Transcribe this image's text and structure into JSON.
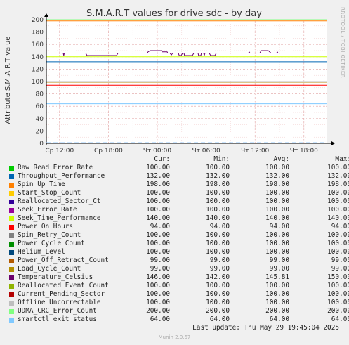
{
  "chart_data": {
    "type": "line",
    "title": "S.M.A.R.T values for drive sdc - by day",
    "ylabel": "Attribute S.M.A.R.T value",
    "ylim": [
      0,
      200
    ],
    "y_ticks": [
      0,
      20,
      40,
      60,
      80,
      100,
      120,
      140,
      160,
      180,
      200
    ],
    "x_ticks": [
      "Ср 12:00",
      "Ср 18:00",
      "Чт 00:00",
      "Чт 06:00",
      "Чт 12:00",
      "Чт 18:00"
    ],
    "grid": true,
    "series": [
      {
        "name": "Raw_Read_Error_Rate",
        "color": "#00cc00",
        "cur": "100.00",
        "min": "100.00",
        "avg": "100.00",
        "max": "100.00",
        "value": 100
      },
      {
        "name": "Throughput_Performance",
        "color": "#0066b3",
        "cur": "132.00",
        "min": "132.00",
        "avg": "132.00",
        "max": "132.00",
        "value": 132
      },
      {
        "name": "Spin_Up_Time",
        "color": "#ff8000",
        "cur": "198.00",
        "min": "198.00",
        "avg": "198.00",
        "max": "198.00",
        "value": 198
      },
      {
        "name": "Start_Stop_Count",
        "color": "#ffcc00",
        "cur": "100.00",
        "min": "100.00",
        "avg": "100.00",
        "max": "100.00",
        "value": 100
      },
      {
        "name": "Reallocated_Sector_Ct",
        "color": "#330099",
        "cur": "100.00",
        "min": "100.00",
        "avg": "100.00",
        "max": "100.00",
        "value": 100
      },
      {
        "name": "Seek_Error_Rate",
        "color": "#990099",
        "cur": "100.00",
        "min": "100.00",
        "avg": "100.00",
        "max": "100.00",
        "value": 100
      },
      {
        "name": "Seek_Time_Performance",
        "color": "#ccff00",
        "cur": "140.00",
        "min": "140.00",
        "avg": "140.00",
        "max": "140.00",
        "value": 140
      },
      {
        "name": "Power_On_Hours",
        "color": "#ff0000",
        "cur": "94.00",
        "min": "94.00",
        "avg": "94.00",
        "max": "94.00",
        "value": 94
      },
      {
        "name": "Spin_Retry_Count",
        "color": "#808080",
        "cur": "100.00",
        "min": "100.00",
        "avg": "100.00",
        "max": "100.00",
        "value": 100
      },
      {
        "name": "Power_Cycle_Count",
        "color": "#008f00",
        "cur": "100.00",
        "min": "100.00",
        "avg": "100.00",
        "max": "100.00",
        "value": 100
      },
      {
        "name": "Helium_Level",
        "color": "#00487d",
        "cur": "100.00",
        "min": "100.00",
        "avg": "100.00",
        "max": "100.00",
        "value": 100
      },
      {
        "name": "Power_Off_Retract_Count",
        "color": "#b35a00",
        "cur": "99.00",
        "min": "99.00",
        "avg": "99.00",
        "max": "99.00",
        "value": 99
      },
      {
        "name": "Load_Cycle_Count",
        "color": "#b38f00",
        "cur": "99.00",
        "min": "99.00",
        "avg": "99.00",
        "max": "99.00",
        "value": 99
      },
      {
        "name": "Temperature_Celsius",
        "color": "#6b006b",
        "cur": "146.00",
        "min": "142.00",
        "avg": "145.81",
        "max": "150.00",
        "value": 146
      },
      {
        "name": "Reallocated_Event_Count",
        "color": "#8fb300",
        "cur": "100.00",
        "min": "100.00",
        "avg": "100.00",
        "max": "100.00",
        "value": 100
      },
      {
        "name": "Current_Pending_Sector",
        "color": "#b30000",
        "cur": "100.00",
        "min": "100.00",
        "avg": "100.00",
        "max": "100.00",
        "value": 100
      },
      {
        "name": "Offline_Uncorrectable",
        "color": "#bebebe",
        "cur": "100.00",
        "min": "100.00",
        "avg": "100.00",
        "max": "100.00",
        "value": 100
      },
      {
        "name": "UDMA_CRC_Error_Count",
        "color": "#80ff80",
        "cur": "200.00",
        "min": "200.00",
        "avg": "200.00",
        "max": "200.00",
        "value": 200
      },
      {
        "name": "smartctl_exit_status",
        "color": "#80c9ff",
        "cur": "64.00",
        "min": "64.00",
        "avg": "64.00",
        "max": "64.00",
        "value": 64
      }
    ],
    "temperature_trace": [
      [
        0,
        146
      ],
      [
        0.06,
        146
      ],
      [
        0.062,
        142
      ],
      [
        0.064,
        146
      ],
      [
        0.14,
        146
      ],
      [
        0.145,
        142
      ],
      [
        0.25,
        142
      ],
      [
        0.255,
        146
      ],
      [
        0.36,
        146
      ],
      [
        0.362,
        148
      ],
      [
        0.37,
        150
      ],
      [
        0.41,
        150
      ],
      [
        0.412,
        148
      ],
      [
        0.43,
        148
      ],
      [
        0.432,
        146
      ],
      [
        0.44,
        146
      ],
      [
        0.445,
        143
      ],
      [
        0.45,
        146
      ],
      [
        0.47,
        146
      ],
      [
        0.473,
        142
      ],
      [
        0.48,
        142
      ],
      [
        0.485,
        146
      ],
      [
        0.49,
        146
      ],
      [
        0.492,
        142
      ],
      [
        0.52,
        142
      ],
      [
        0.525,
        146
      ],
      [
        0.54,
        146
      ],
      [
        0.542,
        142
      ],
      [
        0.55,
        142
      ],
      [
        0.552,
        146
      ],
      [
        0.56,
        146
      ],
      [
        0.562,
        142
      ],
      [
        0.565,
        146
      ],
      [
        0.58,
        146
      ],
      [
        0.585,
        142
      ],
      [
        0.6,
        142
      ],
      [
        0.605,
        146
      ],
      [
        0.72,
        146
      ],
      [
        0.722,
        148
      ],
      [
        0.725,
        146
      ],
      [
        0.76,
        146
      ],
      [
        0.765,
        150
      ],
      [
        0.79,
        150
      ],
      [
        0.795,
        148
      ],
      [
        0.8,
        146
      ],
      [
        0.82,
        146
      ],
      [
        0.822,
        148
      ],
      [
        0.825,
        146
      ],
      [
        1,
        146
      ]
    ]
  },
  "legend": {
    "headers": {
      "cur": "Cur:",
      "min": "Min:",
      "avg": "Avg:",
      "max": "Max:"
    }
  },
  "footer": {
    "last_update": "Last update: Thu May 29 19:45:04 2025",
    "version": "Munin 2.0.67"
  },
  "side_label": "RRDTOOL / TOBI OETIKER"
}
